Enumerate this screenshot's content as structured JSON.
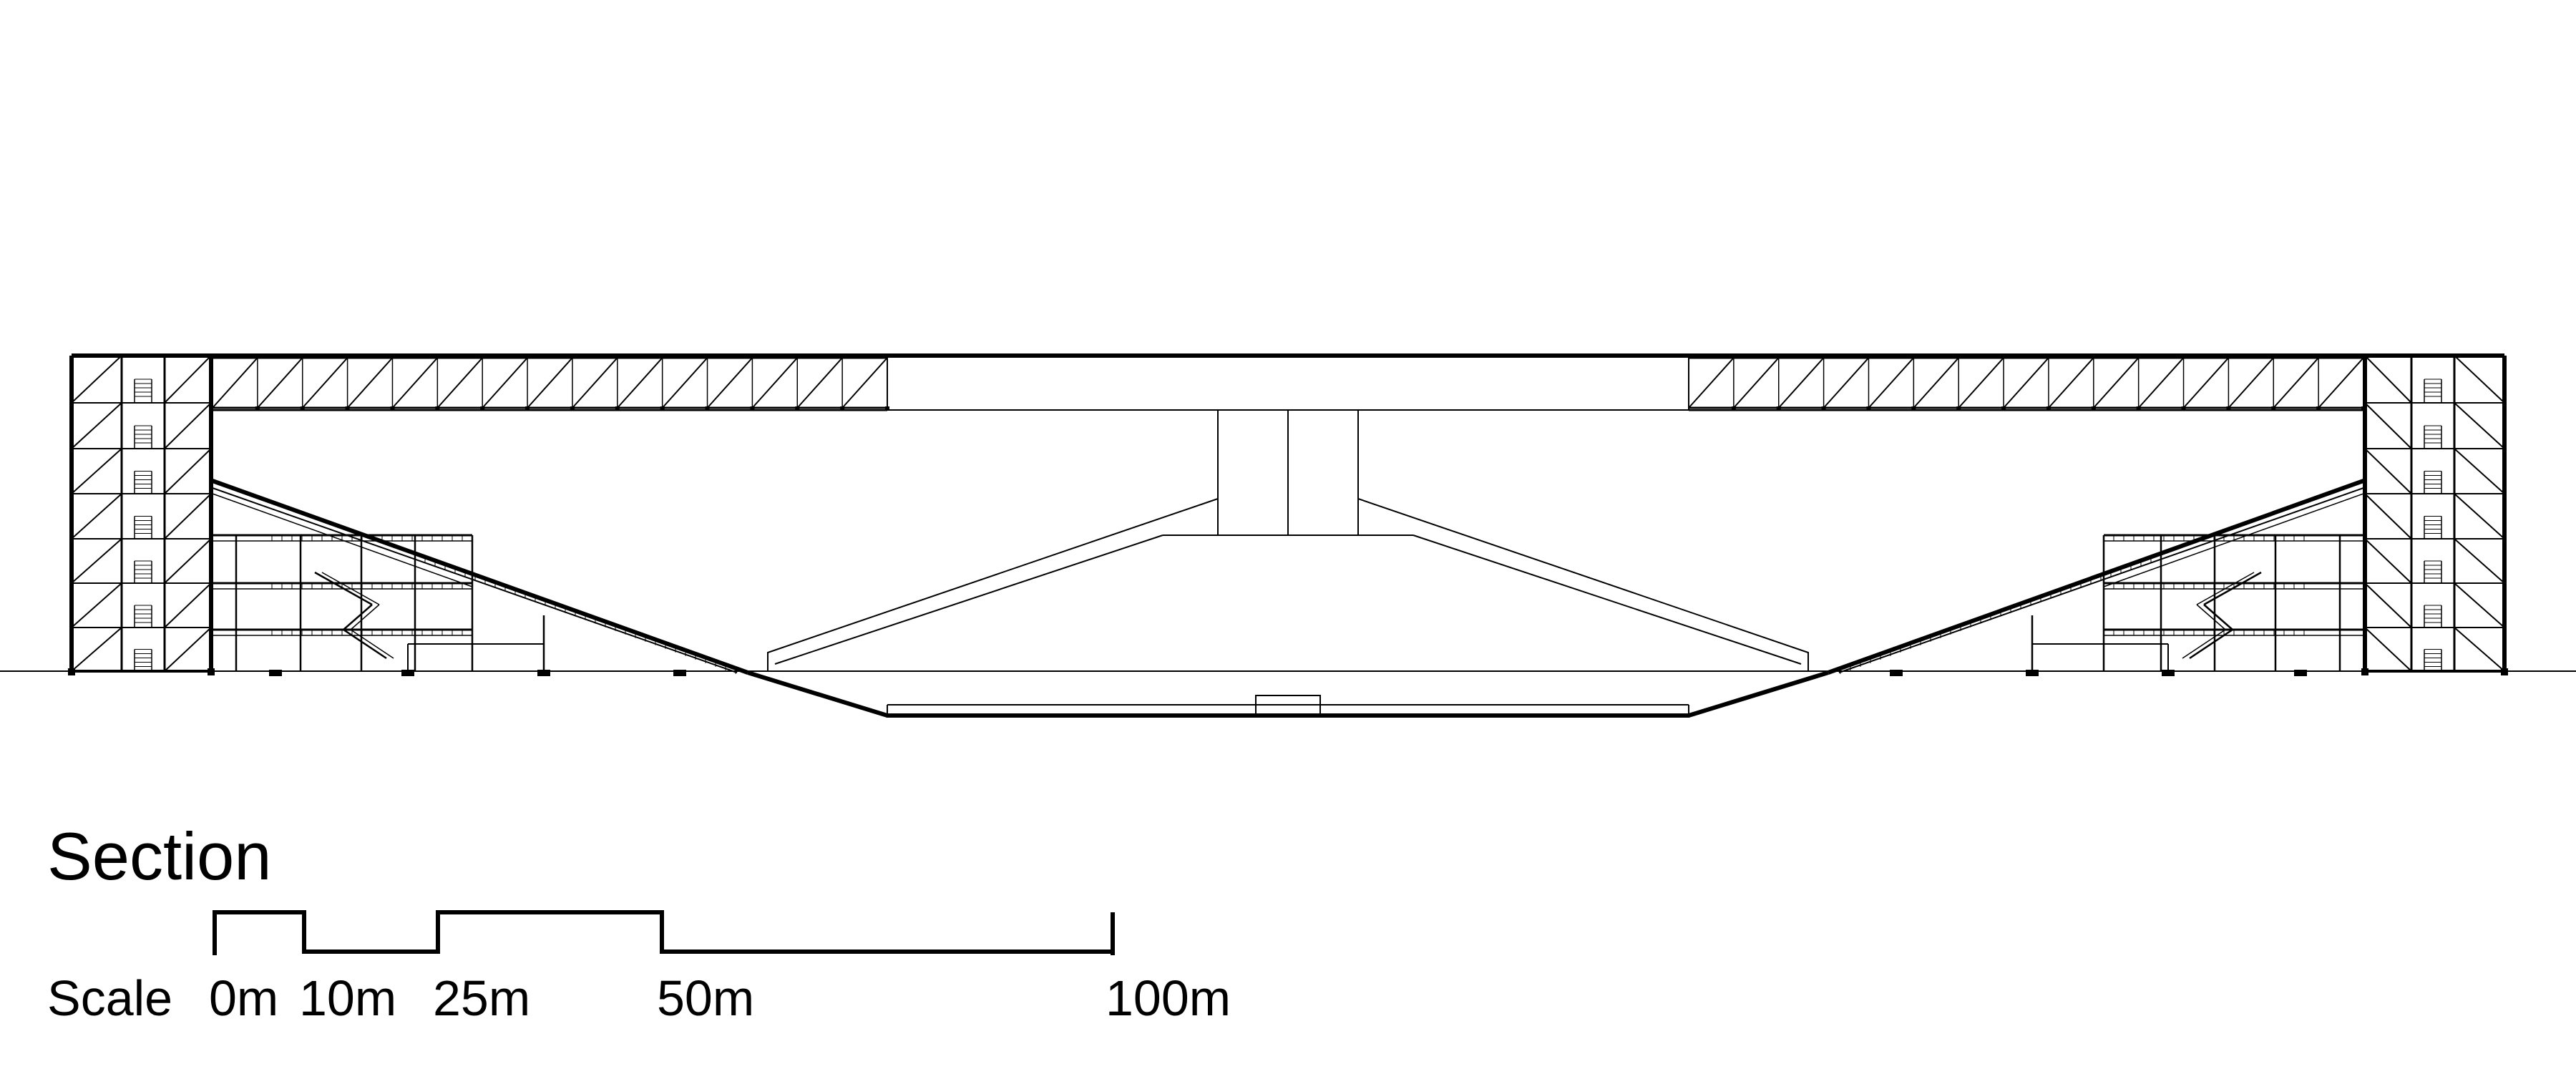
{
  "drawing": {
    "title": "Section",
    "scale": {
      "label": "Scale",
      "marks": [
        "0m",
        "10m",
        "25m",
        "50m",
        "100m"
      ]
    },
    "colors": {
      "line": "#000000",
      "background": "#ffffff"
    }
  }
}
